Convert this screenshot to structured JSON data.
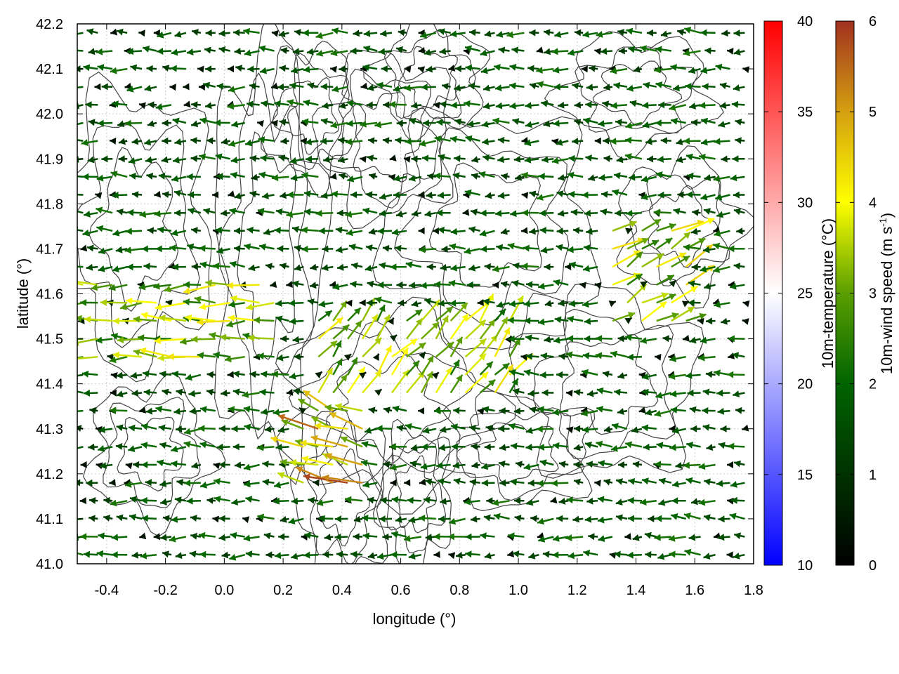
{
  "chart_data": {
    "type": "quiver",
    "xlabel": "longitude (°)",
    "ylabel": "latitude (°)",
    "xlim": [
      -0.5,
      1.8
    ],
    "ylim": [
      41.0,
      42.2
    ],
    "x_ticks": [
      "-0.4",
      "-0.2",
      "0.0",
      "0.2",
      "0.4",
      "0.6",
      "0.8",
      "1.0",
      "1.2",
      "1.4",
      "1.6",
      "1.8"
    ],
    "x_tick_values": [
      -0.4,
      -0.2,
      0.0,
      0.2,
      0.4,
      0.6,
      0.8,
      1.0,
      1.2,
      1.4,
      1.6,
      1.8
    ],
    "y_ticks": [
      "41.0",
      "41.1",
      "41.2",
      "41.3",
      "41.4",
      "41.5",
      "41.6",
      "41.7",
      "41.8",
      "41.9",
      "42.0",
      "42.1",
      "42.2"
    ],
    "y_tick_values": [
      41.0,
      41.1,
      41.2,
      41.3,
      41.4,
      41.5,
      41.6,
      41.7,
      41.8,
      41.9,
      42.0,
      42.1,
      42.2
    ],
    "grid": true,
    "contours": "terrain height contours (dark grey)",
    "vectors": {
      "quantity": "10m wind",
      "dominant_direction": "westward (flow toward decreasing longitude)",
      "regions": [
        {
          "lon": [
            -0.5,
            0.2
          ],
          "lat": [
            41.45,
            41.65
          ],
          "speed": 3.8,
          "direction_deg": 180
        },
        {
          "lon": [
            0.3,
            1.0
          ],
          "lat": [
            41.35,
            41.55
          ],
          "speed": 3.8,
          "direction_deg": 50
        },
        {
          "lon": [
            1.3,
            1.6
          ],
          "lat": [
            41.5,
            41.75
          ],
          "speed": 4.0,
          "direction_deg": 30
        },
        {
          "lon": [
            0.25,
            0.5
          ],
          "lat": [
            41.15,
            41.35
          ],
          "speed": 5.3,
          "direction_deg": 160
        },
        {
          "lon": [
            -0.5,
            1.8
          ],
          "lat": [
            41.0,
            42.2
          ],
          "speed": 2.0,
          "direction_deg": 180
        }
      ]
    },
    "colorbars": [
      {
        "label": "10m-temperature (°C)",
        "ticks": [
          "10",
          "15",
          "20",
          "25",
          "30",
          "35",
          "40"
        ],
        "range": [
          10,
          40
        ],
        "colors": [
          "#0000ff",
          "#ffffff",
          "#ff0000"
        ]
      },
      {
        "label": "10m-wind speed (m s-1)",
        "ticks": [
          "0",
          "1",
          "2",
          "3",
          "4",
          "5",
          "6"
        ],
        "range": [
          0,
          6
        ],
        "colors": [
          "#000000",
          "#006400",
          "#5a9e00",
          "#9acd00",
          "#ffff00",
          "#d4a010",
          "#a03020"
        ]
      }
    ]
  }
}
